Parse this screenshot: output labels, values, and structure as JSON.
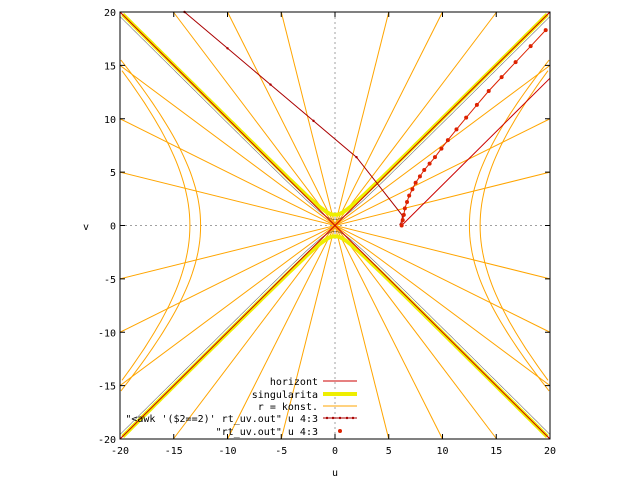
{
  "chart_data": {
    "type": "line",
    "title": "",
    "xlabel": "u",
    "ylabel": "v",
    "xlim": [
      -20,
      20
    ],
    "ylim": [
      -20,
      20
    ],
    "xticks": [
      -20,
      -15,
      -10,
      -5,
      0,
      5,
      10,
      15,
      20
    ],
    "yticks": [
      -20,
      -15,
      -10,
      -5,
      0,
      5,
      10,
      15,
      20
    ],
    "xtick_labels": [
      "-20",
      "-15",
      "-10",
      "-5",
      "0",
      "5",
      "10",
      "15",
      "20"
    ],
    "ytick_labels": [
      "-20",
      "-15",
      "-10",
      "-5",
      "0",
      "5",
      "10",
      "15",
      "20"
    ],
    "zero_axes": true,
    "grid": false,
    "legend_position": "bottom-center",
    "colors": {
      "horizont": "#cc0000",
      "singularita": "#eeee00",
      "r_konst": "#ffa500",
      "awk_series": "#aa0000",
      "rt_uv": "#dd2200",
      "singularita_edge": "#000000",
      "zero_axis": "#a0a0a0"
    },
    "series": [
      {
        "name": "horizont",
        "style": "line",
        "description_lines": [
          [
            -20,
            -20
          ],
          [
            20,
            20
          ]
        ]
      },
      {
        "name": "singularita",
        "style": "thick-line"
      },
      {
        "name": "r = konst.",
        "style": "line"
      },
      {
        "name": "\"<awk '($2==2)' rt_uv.out\" u 4:3",
        "style": "linespoints",
        "points": [
          [
            -14,
            20
          ],
          [
            -10,
            16.6
          ],
          [
            -6,
            13.2
          ],
          [
            -2,
            9.8
          ],
          [
            2,
            6.4
          ],
          [
            6.3,
            0.9
          ],
          [
            6.1,
            0.1
          ]
        ]
      },
      {
        "name": "\"rt_uv.out\"           u 4:3",
        "style": "points",
        "points": [
          [
            6.2,
            0.0
          ],
          [
            6.3,
            0.5
          ],
          [
            6.4,
            1.0
          ],
          [
            6.5,
            1.6
          ],
          [
            6.7,
            2.2
          ],
          [
            6.9,
            2.8
          ],
          [
            7.2,
            3.4
          ],
          [
            7.5,
            4.0
          ],
          [
            7.9,
            4.6
          ],
          [
            8.3,
            5.2
          ],
          [
            8.8,
            5.8
          ],
          [
            9.3,
            6.4
          ],
          [
            9.9,
            7.2
          ],
          [
            10.5,
            8.0
          ],
          [
            11.3,
            9.0
          ],
          [
            12.2,
            10.1
          ],
          [
            13.2,
            11.3
          ],
          [
            14.3,
            12.6
          ],
          [
            15.5,
            13.9
          ],
          [
            16.8,
            15.3
          ],
          [
            18.2,
            16.8
          ],
          [
            19.6,
            18.3
          ]
        ]
      }
    ],
    "legend": [
      {
        "label": "horizont",
        "style": "line",
        "color_key": "horizont"
      },
      {
        "label": "singularita",
        "style": "thick",
        "color_key": "singularita"
      },
      {
        "label": "r = konst.",
        "style": "line",
        "color_key": "r_konst"
      },
      {
        "label": "\"<awk '($2==2)' rt_uv.out\" u 4:3",
        "style": "linespoints",
        "color_key": "awk_series"
      },
      {
        "label": "\"rt_uv.out\"           u 4:3",
        "style": "points",
        "color_key": "rt_uv"
      }
    ],
    "r_konst_line_slopes": [
      0.25,
      0.5,
      0.75,
      1.0,
      1.33,
      2.0,
      4.0
    ],
    "r_konst_hyperbola_vertices": [
      12.5,
      13.5
    ]
  }
}
